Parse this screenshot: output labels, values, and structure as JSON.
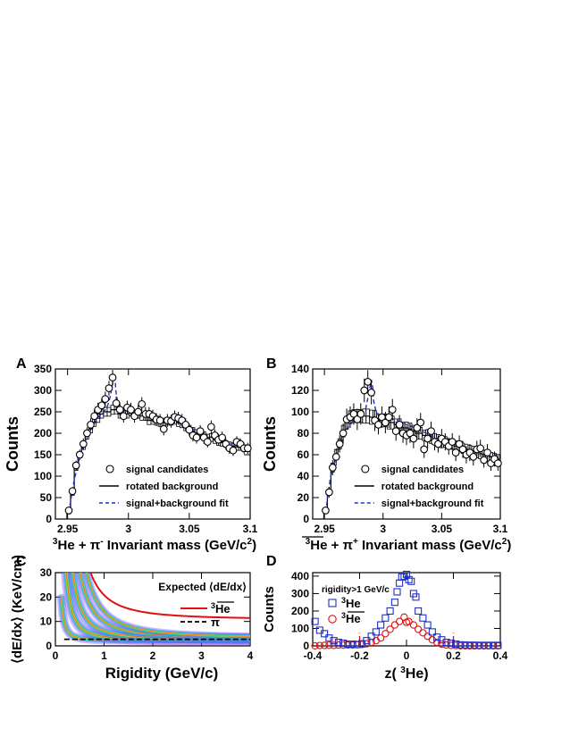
{
  "colors": {
    "sig_line": "#000000",
    "fit": "#2030c8",
    "he3": "#e01010",
    "anti_he3": "#2030c8",
    "he3bar": "#e01010",
    "pi_line": "#000000",
    "cut": "#e01010"
  },
  "chart_data": [
    {
      "id": "A",
      "panel_label": "A",
      "type": "scatter",
      "xlabel": {
        "pre": "3",
        "main": "He + π",
        "sup": "-",
        "post": " Invariant mass (GeV/c",
        "sup2": "2",
        "end": ")"
      },
      "ylabel": "Counts",
      "xlim": [
        2.94,
        3.1
      ],
      "ylim": [
        0,
        350
      ],
      "xticks": [
        2.95,
        3,
        3.05,
        3.1
      ],
      "xtick_labels": [
        "2.95",
        "3",
        "3.05",
        "3.1"
      ],
      "yticks": [
        0,
        50,
        100,
        150,
        200,
        250,
        300,
        350
      ],
      "ytick_labels": [
        "0",
        "50",
        "100",
        "150",
        "200",
        "250",
        "300",
        "350"
      ],
      "legend": {
        "placement": "bottom-center",
        "entries": [
          {
            "label": "signal candidates",
            "marker": "circle"
          },
          {
            "label": "rotated background",
            "marker": "solid-line"
          },
          {
            "label": "signal+background fit",
            "marker": "dashed-line"
          }
        ]
      },
      "points_x": [
        2.951,
        2.954,
        2.957,
        2.96,
        2.963,
        2.966,
        2.969,
        2.972,
        2.975,
        2.978,
        2.981,
        2.984,
        2.987,
        2.99,
        2.993,
        2.996,
        2.999,
        3.002,
        3.005,
        3.008,
        3.011,
        3.014,
        3.017,
        3.02,
        3.023,
        3.026,
        3.029,
        3.032,
        3.035,
        3.038,
        3.041,
        3.044,
        3.047,
        3.05,
        3.053,
        3.056,
        3.059,
        3.062,
        3.065,
        3.068,
        3.071,
        3.074,
        3.077,
        3.08,
        3.083,
        3.086,
        3.089,
        3.092,
        3.095,
        3.098
      ],
      "points_y": [
        20,
        65,
        125,
        150,
        175,
        200,
        220,
        240,
        255,
        265,
        280,
        305,
        330,
        270,
        255,
        240,
        260,
        255,
        240,
        250,
        268,
        245,
        245,
        240,
        232,
        230,
        210,
        230,
        228,
        238,
        235,
        230,
        220,
        208,
        195,
        190,
        205,
        190,
        180,
        215,
        195,
        185,
        190,
        175,
        165,
        160,
        180,
        175,
        165,
        165
      ],
      "errors": [
        5,
        8,
        11,
        12,
        13,
        14,
        15,
        15,
        16,
        16,
        17,
        17,
        18,
        16,
        16,
        15,
        16,
        16,
        15,
        16,
        16,
        16,
        16,
        15,
        15,
        15,
        15,
        15,
        15,
        15,
        15,
        15,
        15,
        14,
        14,
        14,
        14,
        14,
        13,
        15,
        14,
        14,
        14,
        13,
        13,
        13,
        13,
        13,
        13,
        13
      ],
      "background_y": [
        15,
        60,
        120,
        150,
        170,
        195,
        210,
        225,
        235,
        245,
        250,
        250,
        255,
        255,
        245,
        245,
        245,
        250,
        245,
        245,
        240,
        240,
        230,
        230,
        228,
        225,
        225,
        228,
        228,
        230,
        225,
        222,
        215,
        210,
        205,
        200,
        200,
        195,
        190,
        190,
        185,
        180,
        178,
        175,
        172,
        170,
        168,
        168,
        165,
        165
      ],
      "fit_x": [
        2.951,
        2.955,
        2.96,
        2.965,
        2.97,
        2.975,
        2.98,
        2.983,
        2.985,
        2.987,
        2.988,
        2.989,
        2.99,
        2.992,
        2.994,
        2.997,
        3.0,
        3.01,
        3.02,
        3.03,
        3.04,
        3.05,
        3.06,
        3.07,
        3.08,
        3.09,
        3.1
      ],
      "fit_y": [
        15,
        85,
        145,
        185,
        215,
        238,
        250,
        265,
        285,
        315,
        338,
        325,
        290,
        265,
        255,
        252,
        252,
        250,
        243,
        235,
        225,
        215,
        200,
        190,
        180,
        172,
        165
      ]
    },
    {
      "id": "B",
      "panel_label": "B",
      "type": "scatter",
      "xlabel": {
        "pre": "3",
        "main": "He + π",
        "sup": "+",
        "post": " Invariant mass (GeV/c",
        "sup2": "2",
        "end": ")"
      },
      "ylabel": "Counts",
      "xlim": [
        2.94,
        3.1
      ],
      "ylim": [
        0,
        140
      ],
      "xticks": [
        2.95,
        3,
        3.05,
        3.1
      ],
      "xtick_labels": [
        "2.95",
        "3",
        "3.05",
        "3.1"
      ],
      "yticks": [
        0,
        20,
        40,
        60,
        80,
        100,
        120,
        140
      ],
      "ytick_labels": [
        "0",
        "20",
        "40",
        "60",
        "80",
        "100",
        "120",
        "140"
      ],
      "legend": {
        "placement": "bottom-center",
        "entries": [
          {
            "label": "signal candidates",
            "marker": "circle"
          },
          {
            "label": "rotated background",
            "marker": "solid-line"
          },
          {
            "label": "signal+background fit",
            "marker": "dashed-line"
          }
        ]
      },
      "points_x": [
        2.951,
        2.954,
        2.957,
        2.96,
        2.963,
        2.966,
        2.969,
        2.972,
        2.975,
        2.978,
        2.981,
        2.984,
        2.987,
        2.99,
        2.993,
        2.996,
        2.999,
        3.002,
        3.005,
        3.008,
        3.011,
        3.014,
        3.017,
        3.02,
        3.023,
        3.026,
        3.029,
        3.032,
        3.035,
        3.038,
        3.041,
        3.044,
        3.047,
        3.05,
        3.053,
        3.056,
        3.059,
        3.062,
        3.065,
        3.068,
        3.071,
        3.074,
        3.077,
        3.08,
        3.083,
        3.086,
        3.089,
        3.092,
        3.095,
        3.098
      ],
      "points_y": [
        8,
        25,
        48,
        58,
        70,
        80,
        93,
        95,
        98,
        93,
        98,
        120,
        128,
        118,
        92,
        88,
        95,
        90,
        95,
        102,
        82,
        88,
        80,
        78,
        80,
        75,
        85,
        90,
        65,
        75,
        82,
        72,
        70,
        75,
        72,
        68,
        72,
        62,
        70,
        65,
        60,
        62,
        58,
        65,
        66,
        55,
        62,
        52,
        56,
        52
      ],
      "errors": [
        3,
        5,
        7,
        8,
        8,
        9,
        10,
        10,
        10,
        10,
        10,
        11,
        11,
        11,
        10,
        9,
        10,
        10,
        10,
        10,
        9,
        9,
        9,
        9,
        9,
        9,
        9,
        9,
        8,
        9,
        9,
        8,
        8,
        9,
        8,
        8,
        8,
        8,
        8,
        8,
        8,
        8,
        8,
        8,
        8,
        7,
        8,
        7,
        7,
        7
      ],
      "background_y": [
        8,
        25,
        48,
        60,
        70,
        82,
        90,
        95,
        96,
        96,
        96,
        96,
        96,
        95,
        95,
        92,
        92,
        92,
        90,
        90,
        88,
        88,
        85,
        85,
        84,
        82,
        80,
        80,
        78,
        78,
        76,
        75,
        74,
        72,
        72,
        70,
        70,
        68,
        68,
        66,
        65,
        64,
        63,
        62,
        61,
        60,
        59,
        58,
        57,
        56
      ],
      "fit_x": [
        2.951,
        2.955,
        2.96,
        2.965,
        2.97,
        2.975,
        2.98,
        2.985,
        2.988,
        2.99,
        2.991,
        2.992,
        2.994,
        2.997,
        3.0,
        3.01,
        3.02,
        3.03,
        3.04,
        3.05,
        3.06,
        3.07,
        3.08,
        3.09,
        3.1
      ],
      "fit_y": [
        6,
        38,
        58,
        72,
        85,
        93,
        96,
        102,
        118,
        130,
        125,
        110,
        100,
        97,
        95,
        93,
        88,
        84,
        78,
        74,
        70,
        66,
        62,
        59,
        56
      ]
    },
    {
      "id": "C",
      "panel_label": "C",
      "type": "heatmap",
      "xlabel": "Rigidity (GeV/c)",
      "ylabel": "⟨dE/dx⟩ (KeV/cm)",
      "xlim": [
        0,
        4
      ],
      "ylim": [
        0,
        30
      ],
      "xticks": [
        0,
        1,
        2,
        3,
        4
      ],
      "xtick_labels": [
        "0",
        "1",
        "2",
        "3",
        "4"
      ],
      "yticks": [
        0,
        10,
        20,
        30
      ],
      "ytick_labels": [
        "0",
        "10",
        "20",
        "30"
      ],
      "legend": {
        "title": "Expected ⟨dE/dx⟩",
        "placement": "top-right",
        "entries": [
          {
            "label": "3He",
            "overline": true,
            "marker": "solid-red"
          },
          {
            "label": "π",
            "marker": "dashed-black"
          }
        ]
      },
      "bands": [
        {
          "name": "π",
          "k": 0.25,
          "floor": 2.2
        },
        {
          "name": "K",
          "k": 1.4,
          "floor": 2.4
        },
        {
          "name": "p",
          "k": 3.5,
          "floor": 2.6
        },
        {
          "name": "d",
          "k": 7.0,
          "floor": 3.0
        },
        {
          "name": "t",
          "k": 11.0,
          "floor": 3.2
        }
      ],
      "he3_curve": {
        "k": 10.0,
        "floor": 10.8
      },
      "pi_curve": {
        "value": 2.7
      }
    },
    {
      "id": "D",
      "panel_label": "D",
      "type": "scatter",
      "xlabel": {
        "main": "z( ",
        "sup": "3",
        "post": "He)"
      },
      "ylabel": "Counts",
      "xlim": [
        -0.4,
        0.4
      ],
      "ylim": [
        0,
        420
      ],
      "xticks": [
        -0.4,
        -0.2,
        0,
        0.2,
        0.4
      ],
      "xtick_labels": [
        "-0.4",
        "-0.2",
        "0",
        "0.2",
        "0.4"
      ],
      "yticks": [
        0,
        100,
        200,
        300,
        400
      ],
      "ytick_labels": [
        "0",
        "100",
        "200",
        "300",
        "400"
      ],
      "annotation": "rigidity>1 GeV/c",
      "legend": {
        "placement": "top-left",
        "entries": [
          {
            "label": "3He",
            "marker": "open-square-blue"
          },
          {
            "label": "3He",
            "overline": true,
            "marker": "open-circle-red"
          }
        ]
      },
      "cut_lines": [
        -0.2,
        0.2
      ],
      "he3_x": [
        -0.39,
        -0.37,
        -0.35,
        -0.33,
        -0.31,
        -0.29,
        -0.27,
        -0.25,
        -0.23,
        -0.21,
        -0.19,
        -0.17,
        -0.15,
        -0.13,
        -0.11,
        -0.09,
        -0.07,
        -0.05,
        -0.04,
        -0.03,
        -0.02,
        -0.01,
        0.0,
        0.01,
        0.02,
        0.03,
        0.04,
        0.05,
        0.07,
        0.09,
        0.11,
        0.13,
        0.15,
        0.17,
        0.19,
        0.21,
        0.23,
        0.25,
        0.27,
        0.29,
        0.31,
        0.33,
        0.35,
        0.37,
        0.39
      ],
      "he3_y": [
        140,
        90,
        70,
        45,
        30,
        20,
        15,
        10,
        10,
        8,
        12,
        30,
        55,
        80,
        120,
        160,
        200,
        250,
        310,
        360,
        395,
        400,
        410,
        380,
        370,
        300,
        280,
        200,
        160,
        120,
        80,
        50,
        35,
        20,
        15,
        10,
        6,
        5,
        4,
        4,
        3,
        3,
        3,
        3,
        3
      ],
      "antihe3_x": [
        -0.39,
        -0.37,
        -0.35,
        -0.33,
        -0.31,
        -0.29,
        -0.27,
        -0.25,
        -0.23,
        -0.21,
        -0.19,
        -0.17,
        -0.15,
        -0.13,
        -0.11,
        -0.09,
        -0.07,
        -0.05,
        -0.03,
        -0.01,
        0.0,
        0.01,
        0.03,
        0.05,
        0.07,
        0.09,
        0.11,
        0.13,
        0.15,
        0.17,
        0.19,
        0.21,
        0.23,
        0.25,
        0.27,
        0.29,
        0.31,
        0.33,
        0.35,
        0.37,
        0.39
      ],
      "antihe3_y": [
        0,
        2,
        3,
        4,
        3,
        5,
        4,
        5,
        5,
        6,
        8,
        12,
        20,
        30,
        45,
        70,
        95,
        120,
        140,
        165,
        135,
        140,
        120,
        95,
        75,
        55,
        35,
        20,
        10,
        5,
        3,
        2,
        1,
        1,
        0,
        0,
        0,
        0,
        0,
        0,
        0
      ]
    }
  ]
}
